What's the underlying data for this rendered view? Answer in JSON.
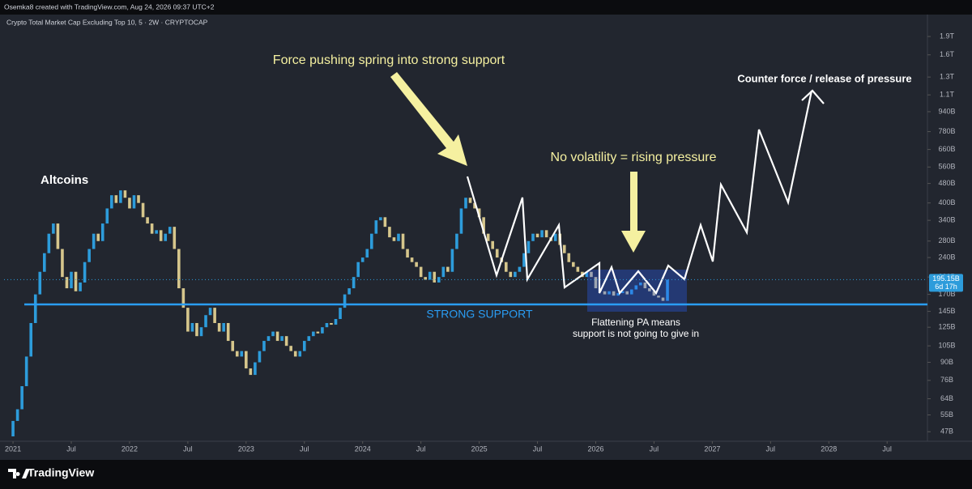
{
  "header": {
    "credit": "Osemka8 created with TradingView.com, Aug 24, 2026 09:37 UTC+2"
  },
  "chart_data": {
    "type": "candlestick",
    "title": "Crypto Total Market Cap Excluding Top 10, 5 · 2W · CRYPTOCAP",
    "log_scale": true,
    "up_color": "#2d9cdb",
    "down_color": "#d6c68c",
    "ylim": [
      43,
      2130
    ],
    "yticks": [
      {
        "value": 47,
        "label": "47B"
      },
      {
        "value": 55,
        "label": "55B"
      },
      {
        "value": 64,
        "label": "64B"
      },
      {
        "value": 76,
        "label": "76B"
      },
      {
        "value": 90,
        "label": "90B"
      },
      {
        "value": 105,
        "label": "105B"
      },
      {
        "value": 125,
        "label": "125B"
      },
      {
        "value": 145,
        "label": "145B"
      },
      {
        "value": 170,
        "label": "170B"
      },
      {
        "value": 200,
        "label": "200B"
      },
      {
        "value": 240,
        "label": "240B"
      },
      {
        "value": 280,
        "label": "280B"
      },
      {
        "value": 340,
        "label": "340B"
      },
      {
        "value": 400,
        "label": "400B"
      },
      {
        "value": 480,
        "label": "480B"
      },
      {
        "value": 560,
        "label": "560B"
      },
      {
        "value": 660,
        "label": "660B"
      },
      {
        "value": 780,
        "label": "780B"
      },
      {
        "value": 940,
        "label": "940B"
      },
      {
        "value": 1100,
        "label": "1.1T"
      },
      {
        "value": 1300,
        "label": "1.3T"
      },
      {
        "value": 1600,
        "label": "1.6T"
      },
      {
        "value": 1900,
        "label": "1.9T"
      }
    ],
    "xlim": [
      -2,
      204
    ],
    "xticks": [
      {
        "value": 0,
        "label": "2021"
      },
      {
        "value": 13,
        "label": "Jul"
      },
      {
        "value": 26,
        "label": "2022"
      },
      {
        "value": 39,
        "label": "Jul"
      },
      {
        "value": 52,
        "label": "2023"
      },
      {
        "value": 65,
        "label": "Jul"
      },
      {
        "value": 78,
        "label": "2024"
      },
      {
        "value": 91,
        "label": "Jul"
      },
      {
        "value": 104,
        "label": "2025"
      },
      {
        "value": 117,
        "label": "Jul"
      },
      {
        "value": 130,
        "label": "2026"
      },
      {
        "value": 143,
        "label": "Jul"
      },
      {
        "value": 156,
        "label": "2027"
      },
      {
        "value": 169,
        "label": "Jul"
      },
      {
        "value": 182,
        "label": "2028"
      },
      {
        "value": 195,
        "label": "Jul"
      }
    ],
    "open": [
      45,
      52,
      58,
      72,
      95,
      130,
      170,
      210,
      250,
      300,
      330,
      260,
      200,
      180,
      210,
      175,
      190,
      230,
      260,
      300,
      280,
      330,
      380,
      430,
      400,
      450,
      420,
      380,
      430,
      400,
      350,
      330,
      300,
      310,
      280,
      300,
      320,
      260,
      180,
      150,
      120,
      130,
      115,
      125,
      140,
      150,
      130,
      120,
      130,
      110,
      100,
      95,
      100,
      85,
      80,
      90,
      100,
      110,
      115,
      120,
      110,
      115,
      105,
      100,
      95,
      100,
      110,
      115,
      120,
      118,
      125,
      130,
      128,
      135,
      150,
      170,
      180,
      200,
      230,
      240,
      260,
      300,
      340,
      350,
      320,
      290,
      280,
      300,
      260,
      240,
      230,
      220,
      200,
      195,
      210,
      190,
      200,
      220,
      210,
      260,
      300,
      380,
      420,
      400,
      380,
      350,
      300,
      280,
      260,
      240,
      230,
      210,
      200,
      210,
      220,
      250,
      280,
      300,
      290,
      310,
      290,
      280,
      300,
      270,
      250,
      230,
      220,
      210,
      200,
      210,
      200,
      180,
      175,
      170,
      175,
      168,
      172,
      175,
      170,
      178,
      185,
      190,
      180,
      175,
      168,
      165,
      160
    ],
    "close": [
      52,
      58,
      72,
      95,
      130,
      170,
      210,
      250,
      300,
      330,
      260,
      200,
      180,
      210,
      175,
      190,
      230,
      260,
      300,
      280,
      330,
      380,
      430,
      400,
      450,
      420,
      380,
      430,
      400,
      350,
      330,
      300,
      310,
      280,
      300,
      320,
      260,
      180,
      150,
      120,
      130,
      115,
      125,
      140,
      150,
      130,
      120,
      130,
      110,
      100,
      95,
      100,
      85,
      80,
      90,
      100,
      110,
      115,
      120,
      110,
      115,
      105,
      100,
      95,
      100,
      110,
      115,
      120,
      118,
      125,
      130,
      128,
      135,
      150,
      170,
      180,
      200,
      230,
      240,
      260,
      300,
      340,
      350,
      320,
      290,
      280,
      300,
      260,
      240,
      230,
      220,
      200,
      195,
      210,
      190,
      200,
      220,
      210,
      260,
      300,
      380,
      420,
      400,
      380,
      350,
      300,
      280,
      260,
      240,
      230,
      210,
      200,
      210,
      220,
      250,
      280,
      300,
      290,
      310,
      290,
      280,
      300,
      270,
      250,
      230,
      220,
      210,
      200,
      210,
      200,
      180,
      175,
      170,
      175,
      168,
      172,
      175,
      170,
      178,
      185,
      190,
      180,
      175,
      168,
      165,
      160,
      195.15
    ],
    "last_price_label": "195.15B",
    "countdown": "6d 17h",
    "annotations": [
      "Altcoins",
      "Force pushing spring into strong support",
      "No volatility = rising pressure",
      "Counter force / release of pressure",
      "STRONG SUPPORT",
      "Flattening PA means",
      "support is not going to give in"
    ]
  },
  "footer": {
    "brand": "TradingView"
  }
}
